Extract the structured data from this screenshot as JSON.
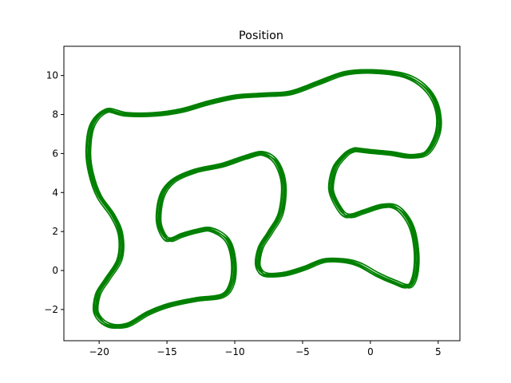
{
  "chart_data": {
    "type": "line",
    "title": "Position",
    "xlabel": "",
    "ylabel": "",
    "xlim": [
      -22.6,
      6.6
    ],
    "ylim": [
      -3.6,
      11.5
    ],
    "xticks": [
      -20,
      -15,
      -10,
      -5,
      0,
      5
    ],
    "xtick_labels": [
      "−20",
      "−15",
      "−10",
      "−5",
      "0",
      "5"
    ],
    "yticks": [
      -2,
      0,
      2,
      4,
      6,
      8,
      10
    ],
    "ytick_labels": [
      "−2",
      "0",
      "2",
      "4",
      "6",
      "8",
      "10"
    ],
    "grid": false,
    "legend": "none",
    "line_color": "#008000",
    "series": [
      {
        "points": [
          [
            -1.2,
            6.2
          ],
          [
            0,
            6.1
          ],
          [
            1.5,
            6.0
          ],
          [
            3,
            5.85
          ],
          [
            4.2,
            6.1
          ],
          [
            5,
            7.2
          ],
          [
            4.9,
            8.4
          ],
          [
            4,
            9.4
          ],
          [
            2.5,
            10.0
          ],
          [
            0,
            10.2
          ],
          [
            -2,
            10.1
          ],
          [
            -4,
            9.6
          ],
          [
            -6,
            9.1
          ],
          [
            -8,
            9.0
          ],
          [
            -10,
            8.9
          ],
          [
            -12,
            8.6
          ],
          [
            -14,
            8.2
          ],
          [
            -16,
            8.0
          ],
          [
            -18,
            8.0
          ],
          [
            -19.5,
            8.2
          ],
          [
            -20.5,
            7.5
          ],
          [
            -20.8,
            6.2
          ],
          [
            -20.6,
            5.0
          ],
          [
            -20,
            3.8
          ],
          [
            -19,
            2.8
          ],
          [
            -18.4,
            1.8
          ],
          [
            -18.5,
            0.6
          ],
          [
            -19.4,
            -0.4
          ],
          [
            -20.1,
            -1.2
          ],
          [
            -20.2,
            -2.2
          ],
          [
            -19.3,
            -2.8
          ],
          [
            -18,
            -2.8
          ],
          [
            -16.5,
            -2.2
          ],
          [
            -15,
            -1.8
          ],
          [
            -13,
            -1.5
          ],
          [
            -11,
            -1.3
          ],
          [
            -10.2,
            -0.6
          ],
          [
            -10.1,
            0.6
          ],
          [
            -10.6,
            1.6
          ],
          [
            -11.8,
            2.1
          ],
          [
            -13,
            2.0
          ],
          [
            -14,
            1.8
          ],
          [
            -15,
            1.6
          ],
          [
            -15.6,
            2.5
          ],
          [
            -15.4,
            3.8
          ],
          [
            -14.6,
            4.6
          ],
          [
            -13,
            5.1
          ],
          [
            -11,
            5.4
          ],
          [
            -9.3,
            5.8
          ],
          [
            -8,
            6.0
          ],
          [
            -7,
            5.6
          ],
          [
            -6.4,
            4.5
          ],
          [
            -6.6,
            3.0
          ],
          [
            -7.4,
            2.0
          ],
          [
            -8.1,
            1.2
          ],
          [
            -8.3,
            0.3
          ],
          [
            -7.8,
            -0.2
          ],
          [
            -6.5,
            -0.2
          ],
          [
            -5,
            0.1
          ],
          [
            -3.5,
            0.5
          ],
          [
            -2,
            0.5
          ],
          [
            -0.8,
            0.3
          ],
          [
            0.5,
            -0.2
          ],
          [
            1.8,
            -0.6
          ],
          [
            2.8,
            -0.8
          ],
          [
            3.3,
            -0.2
          ],
          [
            3.4,
            1.0
          ],
          [
            3.0,
            2.3
          ],
          [
            2.0,
            3.2
          ],
          [
            0.8,
            3.3
          ],
          [
            -0.6,
            3.0
          ],
          [
            -1.7,
            2.8
          ],
          [
            -2.4,
            3.3
          ],
          [
            -2.9,
            4.2
          ],
          [
            -2.6,
            5.3
          ],
          [
            -1.8,
            6.0
          ],
          [
            -1.2,
            6.2
          ]
        ]
      }
    ]
  }
}
